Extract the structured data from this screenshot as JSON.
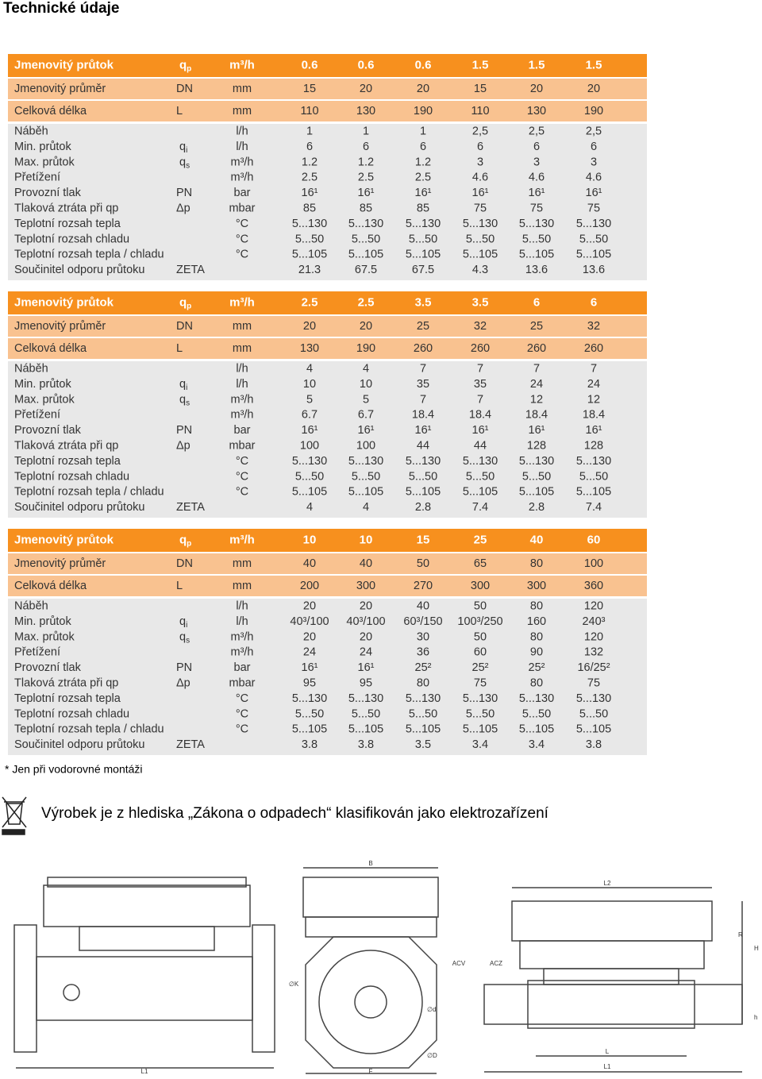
{
  "title": "Technické údaje",
  "tables": [
    {
      "rows": [
        {
          "label": "Jmenovitý průtok",
          "symbol": {
            "base": "q",
            "sub": "p"
          },
          "unit": "m³/h",
          "values": [
            "0.6",
            "0.6",
            "0.6",
            "1.5",
            "1.5",
            "1.5"
          ]
        },
        {
          "label": "Jmenovitý průměr",
          "symbol": "DN",
          "unit": "mm",
          "values": [
            "15",
            "20",
            "20",
            "15",
            "20",
            "20"
          ]
        },
        {
          "label": "Celková délka",
          "symbol": "L",
          "unit": "mm",
          "values": [
            "110",
            "130",
            "190",
            "110",
            "130",
            "190"
          ]
        },
        {
          "label": "Náběh",
          "symbol": null,
          "unit": "l/h",
          "values": [
            "1",
            "1",
            "1",
            "2,5",
            "2,5",
            "2,5"
          ]
        },
        {
          "label": "Min. průtok",
          "symbol": {
            "base": "q",
            "sub": "i"
          },
          "unit": "l/h",
          "values": [
            "6",
            "6",
            "6",
            "6",
            "6",
            "6"
          ]
        },
        {
          "label": "Max. průtok",
          "symbol": {
            "base": "q",
            "sub": "s"
          },
          "unit": "m³/h",
          "values": [
            "1.2",
            "1.2",
            "1.2",
            "3",
            "3",
            "3"
          ]
        },
        {
          "label": "Přetížení",
          "symbol": null,
          "unit": "m³/h",
          "values": [
            "2.5",
            "2.5",
            "2.5",
            "4.6",
            "4.6",
            "4.6"
          ]
        },
        {
          "label": "Provozní tlak",
          "symbol": "PN",
          "unit": "bar",
          "values": [
            "16¹",
            "16¹",
            "16¹",
            "16¹",
            "16¹",
            "16¹"
          ]
        },
        {
          "label": "Tlaková ztráta při qp",
          "symbol": "Δp",
          "unit": "mbar",
          "values": [
            "85",
            "85",
            "85",
            "75",
            "75",
            "75"
          ]
        },
        {
          "label": "Teplotní rozsah tepla",
          "symbol": null,
          "unit": "°C",
          "values": [
            "5...130",
            "5...130",
            "5...130",
            "5...130",
            "5...130",
            "5...130"
          ]
        },
        {
          "label": "Teplotní rozsah chladu",
          "symbol": null,
          "unit": "°C",
          "values": [
            "5...50",
            "5...50",
            "5...50",
            "5...50",
            "5...50",
            "5...50"
          ]
        },
        {
          "label": "Teplotní rozsah tepla / chladu",
          "symbol": null,
          "unit": "°C",
          "values": [
            "5...105",
            "5...105",
            "5...105",
            "5...105",
            "5...105",
            "5...105"
          ]
        },
        {
          "label": "Součinitel odporu průtoku",
          "symbol": "ZETA",
          "unit": null,
          "values": [
            "21.3",
            "67.5",
            "67.5",
            "4.3",
            "13.6",
            "13.6"
          ]
        }
      ]
    },
    {
      "rows": [
        {
          "label": "Jmenovitý průtok",
          "symbol": {
            "base": "q",
            "sub": "p"
          },
          "unit": "m³/h",
          "values": [
            "2.5",
            "2.5",
            "3.5",
            "3.5",
            "6",
            "6"
          ]
        },
        {
          "label": "Jmenovitý průměr",
          "symbol": "DN",
          "unit": "mm",
          "values": [
            "20",
            "20",
            "25",
            "32",
            "25",
            "32"
          ]
        },
        {
          "label": "Celková délka",
          "symbol": "L",
          "unit": "mm",
          "values": [
            "130",
            "190",
            "260",
            "260",
            "260",
            "260"
          ]
        },
        {
          "label": "Náběh",
          "symbol": null,
          "unit": "l/h",
          "values": [
            "4",
            "4",
            "7",
            "7",
            "7",
            "7"
          ]
        },
        {
          "label": "Min. průtok",
          "symbol": {
            "base": "q",
            "sub": "i"
          },
          "unit": "l/h",
          "values": [
            "10",
            "10",
            "35",
            "35",
            "24",
            "24"
          ]
        },
        {
          "label": "Max. průtok",
          "symbol": {
            "base": "q",
            "sub": "s"
          },
          "unit": "m³/h",
          "values": [
            "5",
            "5",
            "7",
            "7",
            "12",
            "12"
          ]
        },
        {
          "label": "Přetížení",
          "symbol": null,
          "unit": "m³/h",
          "values": [
            "6.7",
            "6.7",
            "18.4",
            "18.4",
            "18.4",
            "18.4"
          ]
        },
        {
          "label": "Provozní tlak",
          "symbol": "PN",
          "unit": "bar",
          "values": [
            "16¹",
            "16¹",
            "16¹",
            "16¹",
            "16¹",
            "16¹"
          ]
        },
        {
          "label": "Tlaková ztráta při qp",
          "symbol": "Δp",
          "unit": "mbar",
          "values": [
            "100",
            "100",
            "44",
            "44",
            "128",
            "128"
          ]
        },
        {
          "label": "Teplotní rozsah tepla",
          "symbol": null,
          "unit": "°C",
          "values": [
            "5...130",
            "5...130",
            "5...130",
            "5...130",
            "5...130",
            "5...130"
          ]
        },
        {
          "label": "Teplotní rozsah chladu",
          "symbol": null,
          "unit": "°C",
          "values": [
            "5...50",
            "5...50",
            "5...50",
            "5...50",
            "5...50",
            "5...50"
          ]
        },
        {
          "label": "Teplotní rozsah tepla / chladu",
          "symbol": null,
          "unit": "°C",
          "values": [
            "5...105",
            "5...105",
            "5...105",
            "5...105",
            "5...105",
            "5...105"
          ]
        },
        {
          "label": "Součinitel odporu průtoku",
          "symbol": "ZETA",
          "unit": null,
          "values": [
            "4",
            "4",
            "2.8",
            "7.4",
            "2.8",
            "7.4"
          ]
        }
      ]
    },
    {
      "rows": [
        {
          "label": "Jmenovitý průtok",
          "symbol": {
            "base": "q",
            "sub": "p"
          },
          "unit": "m³/h",
          "values": [
            "10",
            "10",
            "15",
            "25",
            "40",
            "60"
          ]
        },
        {
          "label": "Jmenovitý průměr",
          "symbol": "DN",
          "unit": "mm",
          "values": [
            "40",
            "40",
            "50",
            "65",
            "80",
            "100"
          ]
        },
        {
          "label": "Celková délka",
          "symbol": "L",
          "unit": "mm",
          "values": [
            "200",
            "300",
            "270",
            "300",
            "300",
            "360"
          ]
        },
        {
          "label": "Náběh",
          "symbol": null,
          "unit": "l/h",
          "values": [
            "20",
            "20",
            "40",
            "50",
            "80",
            "120"
          ]
        },
        {
          "label": "Min. průtok",
          "symbol": {
            "base": "q",
            "sub": "i"
          },
          "unit": "l/h",
          "values": [
            "40³/100",
            "40³/100",
            "60³/150",
            "100³/250",
            "160",
            "240³"
          ]
        },
        {
          "label": "Max. průtok",
          "symbol": {
            "base": "q",
            "sub": "s"
          },
          "unit": "m³/h",
          "values": [
            "20",
            "20",
            "30",
            "50",
            "80",
            "120"
          ]
        },
        {
          "label": "Přetížení",
          "symbol": null,
          "unit": "m³/h",
          "values": [
            "24",
            "24",
            "36",
            "60",
            "90",
            "132"
          ]
        },
        {
          "label": "Provozní tlak",
          "symbol": "PN",
          "unit": "bar",
          "values": [
            "16¹",
            "16¹",
            "25²",
            "25²",
            "25²",
            "16/25²"
          ]
        },
        {
          "label": "Tlaková ztráta při qp",
          "symbol": "Δp",
          "unit": "mbar",
          "values": [
            "95",
            "95",
            "80",
            "75",
            "80",
            "75"
          ]
        },
        {
          "label": "Teplotní rozsah tepla",
          "symbol": null,
          "unit": "°C",
          "values": [
            "5...130",
            "5...130",
            "5...130",
            "5...130",
            "5...130",
            "5...130"
          ]
        },
        {
          "label": "Teplotní rozsah chladu",
          "symbol": null,
          "unit": "°C",
          "values": [
            "5...50",
            "5...50",
            "5...50",
            "5...50",
            "5...50",
            "5...50"
          ]
        },
        {
          "label": "Teplotní rozsah tepla / chladu",
          "symbol": null,
          "unit": "°C",
          "values": [
            "5...105",
            "5...105",
            "5...105",
            "5...105",
            "5...105",
            "5...105"
          ]
        },
        {
          "label": "Součinitel odporu průtoku",
          "symbol": "ZETA",
          "unit": null,
          "values": [
            "3.8",
            "3.8",
            "3.5",
            "3.4",
            "3.4",
            "3.8"
          ]
        }
      ]
    }
  ],
  "footnote": "*   Jen při vodorovné montáži",
  "notice": "Výrobek je z hlediska „Zákona o odpadech“ klasifikován jako elektrozařízení",
  "drawing": {
    "labels": {
      "b": "B",
      "l1a": "L1",
      "f": "F",
      "k": "∅K",
      "d": "∅d",
      "dd": "∅D",
      "l2": "L2",
      "r": "R",
      "h": "H",
      "hs": "h",
      "acv": "ACV",
      "acz": "ACZ",
      "l": "L",
      "l1b": "L1"
    }
  }
}
